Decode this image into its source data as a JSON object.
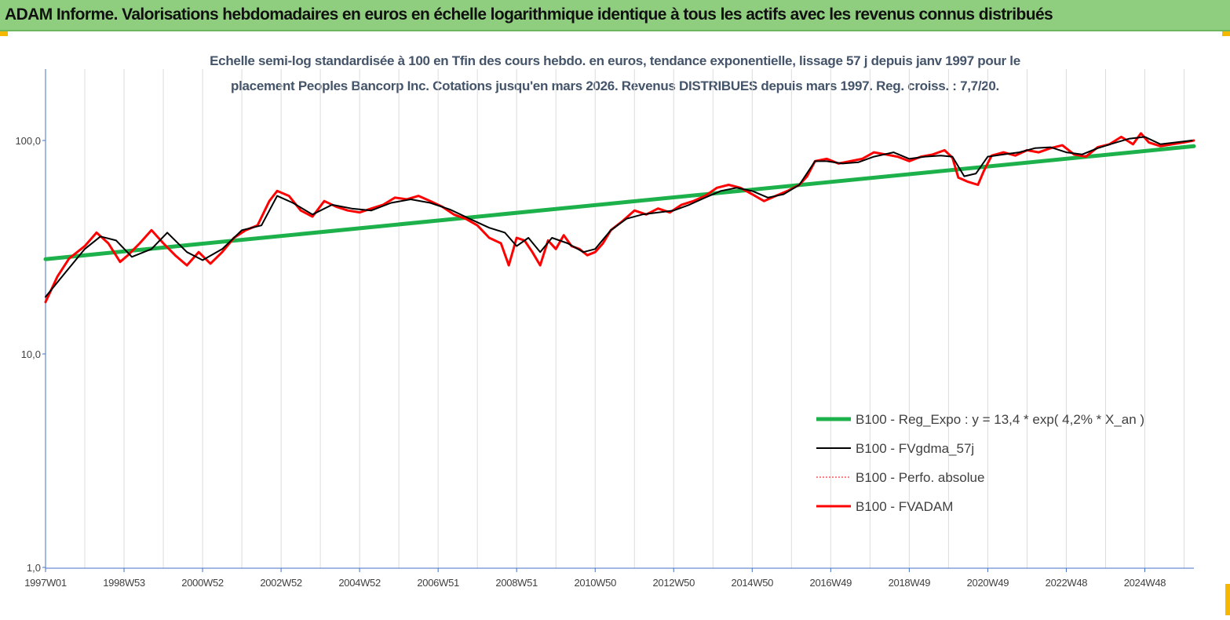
{
  "header": {
    "title": "ADAM Informe. Valorisations hebdomadaires en euros en échelle logarithmique identique à tous les actifs avec les revenus connus distribués",
    "bg_color": "#8fce7f",
    "corner_color": "#f5b800"
  },
  "chart_data": {
    "type": "line",
    "title_line1": "Echelle semi-log standardisée à 100 en Tfin des cours hebdo. en euros, tendance exponentielle, lissage 57 j depuis janv 1997 pour le",
    "title_line2": "placement Peoples Bancorp Inc. Cotations jusqu'en mars 2026. Revenus DISTRIBUES depuis mars 1997. Reg. croiss. : 7,7/20.",
    "y_scale": "log",
    "ylim": [
      1,
      200
    ],
    "xlim": [
      1997.0,
      2026.25
    ],
    "grid": "vertical",
    "y_ticks": [
      {
        "value": 1,
        "label": "1,0"
      },
      {
        "value": 10,
        "label": "10,0"
      },
      {
        "value": 100,
        "label": "100,0"
      }
    ],
    "x_ticks": [
      {
        "value": 1997.0,
        "label": "1997W01"
      },
      {
        "value": 1999.0,
        "label": "1998W53"
      },
      {
        "value": 2001.0,
        "label": "2000W52"
      },
      {
        "value": 2003.0,
        "label": "2002W52"
      },
      {
        "value": 2005.0,
        "label": "2004W52"
      },
      {
        "value": 2007.0,
        "label": "2006W51"
      },
      {
        "value": 2009.0,
        "label": "2008W51"
      },
      {
        "value": 2011.0,
        "label": "2010W50"
      },
      {
        "value": 2013.0,
        "label": "2012W50"
      },
      {
        "value": 2015.0,
        "label": "2014W50"
      },
      {
        "value": 2017.0,
        "label": "2016W49"
      },
      {
        "value": 2019.0,
        "label": "2018W49"
      },
      {
        "value": 2021.0,
        "label": "2020W49"
      },
      {
        "value": 2023.0,
        "label": "2022W48"
      },
      {
        "value": 2025.0,
        "label": "2024W48"
      }
    ],
    "legend_position": "bottom-right",
    "series": [
      {
        "name": "B100 - Reg_Expo : y = 13,4 * exp( 4,2% *  X_an )",
        "color": "#1db14b",
        "style": "solid",
        "width": 5,
        "x": [
          1997.0,
          2026.25
        ],
        "y": [
          27.8,
          94.0
        ]
      },
      {
        "name": "B100 - FVgdma_57j",
        "color": "#000000",
        "style": "solid",
        "width": 2,
        "x": [
          1997.0,
          1997.5,
          1998.0,
          1998.4,
          1998.8,
          1999.2,
          1999.7,
          2000.1,
          2000.6,
          2001.0,
          2001.5,
          2002.0,
          2002.5,
          2002.9,
          2003.3,
          2003.8,
          2004.3,
          2004.8,
          2005.3,
          2005.8,
          2006.3,
          2006.8,
          2007.3,
          2007.8,
          2008.3,
          2008.7,
          2009.0,
          2009.3,
          2009.6,
          2009.9,
          2010.3,
          2010.7,
          2011.0,
          2011.4,
          2011.8,
          2012.2,
          2012.6,
          2013.0,
          2013.4,
          2013.8,
          2014.2,
          2014.6,
          2015.0,
          2015.4,
          2015.8,
          2016.2,
          2016.6,
          2016.9,
          2017.3,
          2017.7,
          2018.1,
          2018.6,
          2019.0,
          2019.4,
          2019.8,
          2020.1,
          2020.4,
          2020.7,
          2021.0,
          2021.4,
          2021.8,
          2022.2,
          2022.6,
          2023.0,
          2023.4,
          2023.8,
          2024.2,
          2024.6,
          2025.0,
          2025.4,
          2025.8,
          2026.2
        ],
        "y": [
          18.5,
          24.0,
          31.0,
          35.5,
          34.0,
          28.5,
          31.0,
          37.0,
          30.0,
          27.5,
          31.0,
          38.0,
          40.0,
          55.0,
          51.0,
          45.0,
          50.0,
          48.0,
          47.0,
          51.0,
          53.0,
          51.0,
          47.5,
          43.0,
          39.0,
          37.0,
          32.0,
          35.0,
          30.0,
          35.0,
          33.0,
          30.0,
          31.0,
          38.0,
          43.0,
          45.0,
          46.0,
          47.0,
          50.0,
          54.0,
          58.0,
          60.0,
          58.0,
          54.0,
          56.0,
          62.0,
          80.0,
          80.0,
          78.0,
          79.0,
          84.0,
          88.0,
          82.0,
          84.0,
          85.0,
          84.0,
          68.0,
          70.0,
          84.0,
          86.0,
          88.0,
          92.0,
          93.0,
          88.0,
          86.0,
          92.0,
          97.0,
          102.0,
          104.0,
          96.0,
          98.0,
          100.0
        ]
      },
      {
        "name": "B100 - Perfo. absolue",
        "color": "#ff0000",
        "style": "dotted",
        "width": 1
      },
      {
        "name": "B100 - FVADAM",
        "color": "#ff0000",
        "style": "solid",
        "width": 3,
        "x": [
          1997.0,
          1997.3,
          1997.6,
          1998.0,
          1998.3,
          1998.6,
          1998.9,
          1999.1,
          1999.4,
          1999.7,
          2000.0,
          2000.3,
          2000.6,
          2000.9,
          2001.2,
          2001.5,
          2001.8,
          2002.1,
          2002.4,
          2002.7,
          2002.9,
          2003.2,
          2003.5,
          2003.8,
          2004.1,
          2004.4,
          2004.7,
          2005.0,
          2005.3,
          2005.6,
          2005.9,
          2006.2,
          2006.5,
          2006.8,
          2007.1,
          2007.4,
          2007.7,
          2008.0,
          2008.3,
          2008.6,
          2008.8,
          2009.0,
          2009.2,
          2009.4,
          2009.6,
          2009.8,
          2010.0,
          2010.2,
          2010.4,
          2010.6,
          2010.8,
          2011.0,
          2011.2,
          2011.4,
          2011.7,
          2012.0,
          2012.3,
          2012.6,
          2012.9,
          2013.2,
          2013.5,
          2013.8,
          2014.1,
          2014.4,
          2014.7,
          2015.0,
          2015.3,
          2015.6,
          2015.9,
          2016.2,
          2016.4,
          2016.6,
          2016.9,
          2017.2,
          2017.5,
          2017.8,
          2018.1,
          2018.4,
          2018.7,
          2019.0,
          2019.3,
          2019.6,
          2019.9,
          2020.1,
          2020.25,
          2020.5,
          2020.75,
          2020.9,
          2021.1,
          2021.4,
          2021.7,
          2022.0,
          2022.3,
          2022.6,
          2022.9,
          2023.2,
          2023.5,
          2023.8,
          2024.1,
          2024.4,
          2024.7,
          2024.9,
          2025.1,
          2025.4,
          2025.7,
          2026.0,
          2026.25
        ],
        "y": [
          17.5,
          23.0,
          28.0,
          32.0,
          37.0,
          33.0,
          27.0,
          29.0,
          33.0,
          38.0,
          33.0,
          29.0,
          26.0,
          30.0,
          26.5,
          30.0,
          35.0,
          38.0,
          40.0,
          52.0,
          58.0,
          55.0,
          47.0,
          44.0,
          52.0,
          49.0,
          47.0,
          46.0,
          48.0,
          50.0,
          54.0,
          53.0,
          55.0,
          52.0,
          49.0,
          45.0,
          43.0,
          40.0,
          35.0,
          33.0,
          26.0,
          35.0,
          34.0,
          30.0,
          26.0,
          34.0,
          31.0,
          36.0,
          32.0,
          31.0,
          29.0,
          30.0,
          33.0,
          38.0,
          42.0,
          47.0,
          45.0,
          48.0,
          46.0,
          50.0,
          52.0,
          55.0,
          60.0,
          62.0,
          60.0,
          56.0,
          52.0,
          55.0,
          58.0,
          62.0,
          68.0,
          80.0,
          82.0,
          78.0,
          80.0,
          82.0,
          88.0,
          86.0,
          84.0,
          80.0,
          84.0,
          86.0,
          90.0,
          83.0,
          67.0,
          64.0,
          62.0,
          72.0,
          85.0,
          88.0,
          85.0,
          90.0,
          88.0,
          92.0,
          95.0,
          86.0,
          84.0,
          93.0,
          96.0,
          104.0,
          96.0,
          108.0,
          98.0,
          94.0,
          96.0,
          98.0,
          100.0
        ]
      }
    ]
  }
}
